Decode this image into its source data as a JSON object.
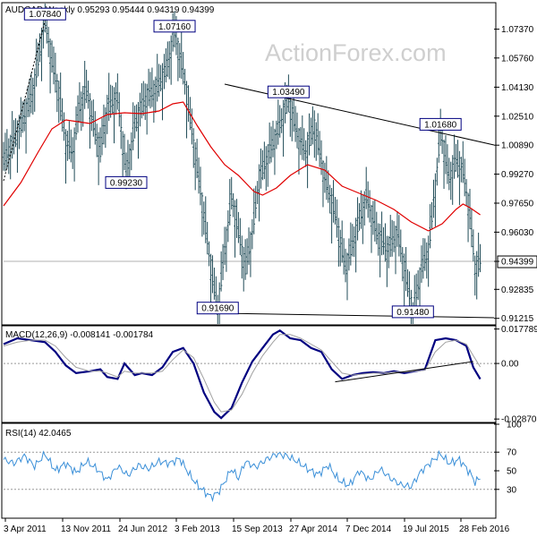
{
  "header": {
    "main_title": "AUDCAD,Weekly  0.95293 0.95444 0.94319 0.94399",
    "macd_title": "MACD(12,26,9) -0.008141 -0.001784",
    "rsi_title": "RSI(14) 42.0465",
    "watermark": "ActionForex.com"
  },
  "colors": {
    "price_bars": "#1f4b57",
    "moving_average": "#e00000",
    "macd_line": "#000080",
    "macd_signal": "#a0a0a0",
    "rsi_line": "#3a8fd8",
    "trendline": "#000000",
    "current_price_line": "#b0b0b0"
  },
  "chart_data": [
    {
      "type": "ohlc",
      "name": "price",
      "ylim": [
        0.909,
        1.088
      ],
      "y_ticks": [
        "1.07370",
        "1.05760",
        "1.04130",
        "1.02510",
        "1.00890",
        "0.99270",
        "0.97650",
        "0.96030",
        "0.94399",
        "0.92835",
        "0.91215"
      ],
      "x_ticks": [
        "3 Apr 2011",
        "13 Nov 2011",
        "24 Jun 2012",
        "3 Feb 2013",
        "15 Sep 2013",
        "27 Apr 2014",
        "7 Dec 2014",
        "19 Jul 2015",
        "28 Feb 2016"
      ],
      "current_price": 0.94399,
      "labels": [
        {
          "text": "1.07840",
          "week": 24,
          "value": 1.0784
        },
        {
          "text": "1.07160",
          "week": 99,
          "value": 1.0716
        },
        {
          "text": "0.99230",
          "week": 71,
          "value": 0.9923
        },
        {
          "text": "1.03490",
          "week": 165,
          "value": 1.0349
        },
        {
          "text": "0.91690",
          "week": 124,
          "value": 0.9169
        },
        {
          "text": "1.01680",
          "week": 253,
          "value": 1.0168
        },
        {
          "text": "0.91480",
          "week": 237,
          "value": 0.9148
        }
      ],
      "moving_average": [
        [
          0,
          0.975
        ],
        [
          10,
          0.988
        ],
        [
          20,
          1.005
        ],
        [
          28,
          1.018
        ],
        [
          36,
          1.023
        ],
        [
          50,
          1.021
        ],
        [
          60,
          1.026
        ],
        [
          70,
          1.027
        ],
        [
          80,
          1.0265
        ],
        [
          90,
          1.028
        ],
        [
          98,
          1.032
        ],
        [
          104,
          1.033
        ],
        [
          112,
          1.02
        ],
        [
          120,
          1.008
        ],
        [
          128,
          0.998
        ],
        [
          136,
          0.992
        ],
        [
          145,
          0.983
        ],
        [
          150,
          0.981
        ],
        [
          158,
          0.985
        ],
        [
          166,
          0.992
        ],
        [
          176,
          0.998
        ],
        [
          186,
          0.995
        ],
        [
          196,
          0.986
        ],
        [
          206,
          0.982
        ],
        [
          216,
          0.978
        ],
        [
          226,
          0.973
        ],
        [
          236,
          0.966
        ],
        [
          246,
          0.961
        ],
        [
          254,
          0.965
        ],
        [
          262,
          0.973
        ],
        [
          266,
          0.976
        ],
        [
          270,
          0.974
        ],
        [
          276,
          0.97
        ]
      ],
      "price_path": [
        [
          0,
          1.0
        ],
        [
          4,
          1.008
        ],
        [
          8,
          1.015
        ],
        [
          12,
          1.025
        ],
        [
          16,
          1.035
        ],
        [
          20,
          1.055
        ],
        [
          24,
          1.0784
        ],
        [
          28,
          1.055
        ],
        [
          32,
          1.038
        ],
        [
          36,
          1.01
        ],
        [
          40,
          1.005
        ],
        [
          44,
          1.03
        ],
        [
          48,
          1.04
        ],
        [
          52,
          1.02
        ],
        [
          56,
          1.005
        ],
        [
          60,
          1.03
        ],
        [
          66,
          1.035
        ],
        [
          71,
          0.9923
        ],
        [
          76,
          1.02
        ],
        [
          82,
          1.035
        ],
        [
          88,
          1.04
        ],
        [
          94,
          1.05
        ],
        [
          99,
          1.0716
        ],
        [
          104,
          1.05
        ],
        [
          110,
          1.01
        ],
        [
          116,
          0.97
        ],
        [
          120,
          0.94
        ],
        [
          124,
          0.9169
        ],
        [
          128,
          0.95
        ],
        [
          132,
          0.98
        ],
        [
          136,
          0.96
        ],
        [
          140,
          0.94
        ],
        [
          144,
          0.96
        ],
        [
          148,
          0.99
        ],
        [
          152,
          1.0
        ],
        [
          156,
          1.01
        ],
        [
          160,
          1.02
        ],
        [
          165,
          1.0349
        ],
        [
          170,
          1.015
        ],
        [
          175,
          1.005
        ],
        [
          180,
          1.02
        ],
        [
          186,
          0.99
        ],
        [
          192,
          0.97
        ],
        [
          198,
          0.94
        ],
        [
          204,
          0.96
        ],
        [
          210,
          0.98
        ],
        [
          216,
          0.96
        ],
        [
          222,
          0.95
        ],
        [
          228,
          0.96
        ],
        [
          232,
          0.94
        ],
        [
          237,
          0.9148
        ],
        [
          242,
          0.94
        ],
        [
          246,
          0.95
        ],
        [
          250,
          0.985
        ],
        [
          253,
          1.0168
        ],
        [
          258,
          0.99
        ],
        [
          262,
          1.0
        ],
        [
          266,
          0.995
        ],
        [
          270,
          0.97
        ],
        [
          273,
          0.94
        ],
        [
          276,
          0.944
        ]
      ],
      "trendlines": [
        {
          "name": "resistance",
          "from": [
            128,
            1.043
          ],
          "to": [
            284,
            1.009
          ]
        },
        {
          "name": "support",
          "from": [
            124,
            0.915
          ],
          "to": [
            284,
            0.9125
          ]
        },
        {
          "name": "early-uptrend",
          "from": [
            0,
            0.989
          ],
          "to": [
            24,
            1.0784
          ]
        }
      ]
    },
    {
      "type": "line",
      "name": "MACD(12,26,9)",
      "ylim": [
        -0.03,
        0.019
      ],
      "y_ticks": [
        "0.017789",
        "0.00",
        "-0.028702"
      ],
      "series": [
        {
          "name": "macd",
          "values": [
            [
              0,
              0.01
            ],
            [
              8,
              0.013
            ],
            [
              16,
              0.012
            ],
            [
              24,
              0.011
            ],
            [
              30,
              0.006
            ],
            [
              36,
              -0.001
            ],
            [
              42,
              -0.005
            ],
            [
              50,
              -0.004
            ],
            [
              56,
              -0.003
            ],
            [
              60,
              -0.007
            ],
            [
              66,
              -0.008
            ],
            [
              70,
              0.0
            ],
            [
              76,
              -0.006
            ],
            [
              80,
              -0.005
            ],
            [
              86,
              -0.006
            ],
            [
              92,
              -0.002
            ],
            [
              98,
              0.006
            ],
            [
              104,
              0.008
            ],
            [
              110,
              0.0
            ],
            [
              116,
              -0.015
            ],
            [
              122,
              -0.025
            ],
            [
              126,
              -0.0282
            ],
            [
              132,
              -0.023
            ],
            [
              138,
              -0.01
            ],
            [
              144,
              0.001
            ],
            [
              150,
              0.008
            ],
            [
              156,
              0.015
            ],
            [
              160,
              0.017
            ],
            [
              166,
              0.013
            ],
            [
              172,
              0.012
            ],
            [
              178,
              0.008
            ],
            [
              184,
              0.006
            ],
            [
              190,
              -0.003
            ],
            [
              196,
              -0.008
            ],
            [
              202,
              -0.006
            ],
            [
              208,
              -0.005
            ],
            [
              214,
              -0.0045
            ],
            [
              220,
              -0.005
            ],
            [
              226,
              -0.004
            ],
            [
              232,
              -0.005
            ],
            [
              238,
              -0.004
            ],
            [
              244,
              -0.003
            ],
            [
              250,
              0.012
            ],
            [
              256,
              0.013
            ],
            [
              262,
              0.012
            ],
            [
              268,
              0.009
            ],
            [
              272,
              -0.002
            ],
            [
              276,
              -0.0081
            ]
          ]
        },
        {
          "name": "signal",
          "values": [
            [
              0,
              0.009
            ],
            [
              8,
              0.011
            ],
            [
              16,
              0.012
            ],
            [
              24,
              0.012
            ],
            [
              30,
              0.009
            ],
            [
              36,
              0.003
            ],
            [
              42,
              -0.002
            ],
            [
              50,
              -0.004
            ],
            [
              56,
              -0.004
            ],
            [
              60,
              -0.005
            ],
            [
              66,
              -0.007
            ],
            [
              70,
              -0.004
            ],
            [
              76,
              -0.005
            ],
            [
              80,
              -0.005
            ],
            [
              86,
              -0.005
            ],
            [
              92,
              -0.004
            ],
            [
              98,
              0.002
            ],
            [
              104,
              0.007
            ],
            [
              110,
              0.003
            ],
            [
              116,
              -0.008
            ],
            [
              122,
              -0.02
            ],
            [
              126,
              -0.025
            ],
            [
              132,
              -0.024
            ],
            [
              138,
              -0.016
            ],
            [
              144,
              -0.005
            ],
            [
              150,
              0.004
            ],
            [
              156,
              0.011
            ],
            [
              160,
              0.015
            ],
            [
              166,
              0.015
            ],
            [
              172,
              0.013
            ],
            [
              178,
              0.01
            ],
            [
              184,
              0.007
            ],
            [
              190,
              0.001
            ],
            [
              196,
              -0.005
            ],
            [
              202,
              -0.006
            ],
            [
              208,
              -0.0055
            ],
            [
              214,
              -0.005
            ],
            [
              220,
              -0.005
            ],
            [
              226,
              -0.0045
            ],
            [
              232,
              -0.0045
            ],
            [
              238,
              -0.004
            ],
            [
              244,
              -0.0035
            ],
            [
              250,
              0.006
            ],
            [
              256,
              0.011
            ],
            [
              262,
              0.012
            ],
            [
              268,
              0.01
            ],
            [
              272,
              0.004
            ],
            [
              276,
              -0.0018
            ]
          ]
        }
      ],
      "trendlines": [
        {
          "name": "macd-support",
          "from": [
            192,
            -0.0095
          ],
          "to": [
            272,
            0.001
          ]
        }
      ]
    },
    {
      "type": "line",
      "name": "RSI(14)",
      "ylim": [
        0,
        100
      ],
      "y_ticks": [
        "100",
        "70",
        "50",
        "30"
      ],
      "reference_levels": [
        70,
        30
      ],
      "series": [
        {
          "name": "rsi",
          "values": [
            [
              0,
              62
            ],
            [
              6,
              58
            ],
            [
              12,
              66
            ],
            [
              18,
              55
            ],
            [
              24,
              68
            ],
            [
              30,
              50
            ],
            [
              36,
              58
            ],
            [
              42,
              48
            ],
            [
              48,
              60
            ],
            [
              54,
              52
            ],
            [
              60,
              40
            ],
            [
              66,
              55
            ],
            [
              72,
              45
            ],
            [
              78,
              56
            ],
            [
              84,
              52
            ],
            [
              90,
              60
            ],
            [
              96,
              58
            ],
            [
              102,
              63
            ],
            [
              108,
              45
            ],
            [
              112,
              35
            ],
            [
              116,
              28
            ],
            [
              120,
              22
            ],
            [
              124,
              26
            ],
            [
              128,
              38
            ],
            [
              132,
              52
            ],
            [
              136,
              42
            ],
            [
              140,
              60
            ],
            [
              146,
              54
            ],
            [
              152,
              62
            ],
            [
              158,
              68
            ],
            [
              164,
              66
            ],
            [
              170,
              60
            ],
            [
              176,
              52
            ],
            [
              182,
              46
            ],
            [
              188,
              56
            ],
            [
              194,
              40
            ],
            [
              200,
              34
            ],
            [
              206,
              50
            ],
            [
              212,
              40
            ],
            [
              218,
              52
            ],
            [
              224,
              42
            ],
            [
              230,
              35
            ],
            [
              236,
              33
            ],
            [
              242,
              50
            ],
            [
              248,
              60
            ],
            [
              253,
              68
            ],
            [
              258,
              58
            ],
            [
              264,
              62
            ],
            [
              270,
              48
            ],
            [
              273,
              38
            ],
            [
              276,
              42
            ]
          ]
        }
      ]
    }
  ]
}
